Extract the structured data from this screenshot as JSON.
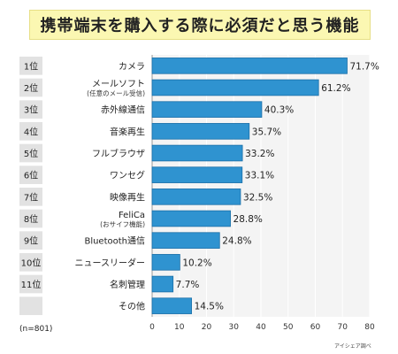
{
  "title": "携帯端末を購入する際に必須だと思う機能",
  "note": "(n=801)",
  "source": "アイシェア調べ",
  "colors": {
    "bar": "#2f93d0",
    "bar_edge": "#1b6fa8",
    "plot_bg": "#f4f4f4",
    "grid": "#ffffff",
    "rank_bg": "#e2e2e2",
    "title_bg": "#fbf7b2"
  },
  "chart_data": {
    "type": "bar",
    "orientation": "horizontal",
    "title": "携帯端末を購入する際に必須だと思う機能",
    "xlim": [
      0,
      80
    ],
    "xticks": [
      0,
      10,
      20,
      30,
      40,
      50,
      60,
      70,
      80
    ],
    "grid": true,
    "value_suffix": "%",
    "ranks": [
      "1位",
      "2位",
      "3位",
      "4位",
      "5位",
      "6位",
      "7位",
      "8位",
      "9位",
      "10位",
      "11位",
      ""
    ],
    "categories": [
      {
        "label": "カメラ",
        "sub": ""
      },
      {
        "label": "メールソフト",
        "sub": "(任意のメール受信)"
      },
      {
        "label": "赤外線通信",
        "sub": ""
      },
      {
        "label": "音楽再生",
        "sub": ""
      },
      {
        "label": "フルブラウザ",
        "sub": ""
      },
      {
        "label": "ワンセグ",
        "sub": ""
      },
      {
        "label": "映像再生",
        "sub": ""
      },
      {
        "label": "FeliCa",
        "sub": "(おサイフ機能)"
      },
      {
        "label": "Bluetooth通信",
        "sub": ""
      },
      {
        "label": "ニュースリーダー",
        "sub": ""
      },
      {
        "label": "名刺管理",
        "sub": ""
      },
      {
        "label": "その他",
        "sub": ""
      }
    ],
    "values": [
      71.7,
      61.2,
      40.3,
      35.7,
      33.2,
      33.1,
      32.5,
      28.8,
      24.8,
      10.2,
      7.7,
      14.5
    ],
    "value_labels": [
      "71.7%",
      "61.2%",
      "40.3%",
      "35.7%",
      "33.2%",
      "33.1%",
      "32.5%",
      "28.8%",
      "24.8%",
      "10.2%",
      "7.7%",
      "14.5%"
    ]
  }
}
